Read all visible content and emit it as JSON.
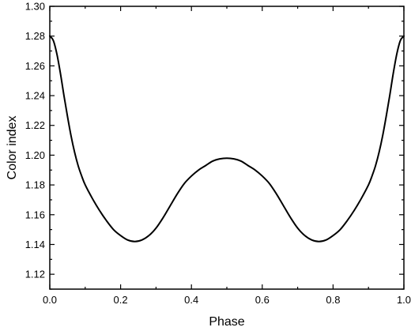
{
  "chart_data": {
    "type": "line",
    "title": "",
    "xlabel": "Phase",
    "ylabel": "Color index",
    "xlim": [
      0.0,
      1.0
    ],
    "ylim": [
      1.11,
      1.3
    ],
    "x_ticks": [
      "0.0",
      "0.2",
      "0.4",
      "0.6",
      "0.8",
      "1.0"
    ],
    "y_ticks": [
      "1.12",
      "1.14",
      "1.16",
      "1.18",
      "1.20",
      "1.22",
      "1.24",
      "1.26",
      "1.28",
      "1.30"
    ],
    "grid": false,
    "legend": "none",
    "line_color": "#000000",
    "series": [
      {
        "x": [
          0.0,
          0.01,
          0.02,
          0.03,
          0.04,
          0.05,
          0.06,
          0.07,
          0.08,
          0.09,
          0.1,
          0.12,
          0.14,
          0.16,
          0.18,
          0.2,
          0.22,
          0.24,
          0.26,
          0.28,
          0.3,
          0.32,
          0.34,
          0.36,
          0.38,
          0.4,
          0.42,
          0.44,
          0.46,
          0.48,
          0.5,
          0.52,
          0.54,
          0.56,
          0.58,
          0.6,
          0.62,
          0.64,
          0.66,
          0.68,
          0.7,
          0.72,
          0.74,
          0.76,
          0.78,
          0.8,
          0.82,
          0.84,
          0.86,
          0.88,
          0.9,
          0.91,
          0.92,
          0.93,
          0.94,
          0.95,
          0.96,
          0.97,
          0.98,
          0.99,
          1.0
        ],
        "y": [
          1.28,
          1.277,
          1.268,
          1.255,
          1.24,
          1.226,
          1.213,
          1.202,
          1.193,
          1.186,
          1.18,
          1.171,
          1.163,
          1.156,
          1.15,
          1.146,
          1.143,
          1.142,
          1.143,
          1.146,
          1.151,
          1.158,
          1.166,
          1.174,
          1.181,
          1.186,
          1.19,
          1.193,
          1.196,
          1.1975,
          1.198,
          1.1975,
          1.196,
          1.193,
          1.19,
          1.186,
          1.181,
          1.174,
          1.166,
          1.158,
          1.151,
          1.146,
          1.143,
          1.142,
          1.143,
          1.146,
          1.15,
          1.156,
          1.163,
          1.171,
          1.18,
          1.186,
          1.193,
          1.202,
          1.213,
          1.226,
          1.24,
          1.255,
          1.268,
          1.277,
          1.28
        ]
      }
    ]
  }
}
